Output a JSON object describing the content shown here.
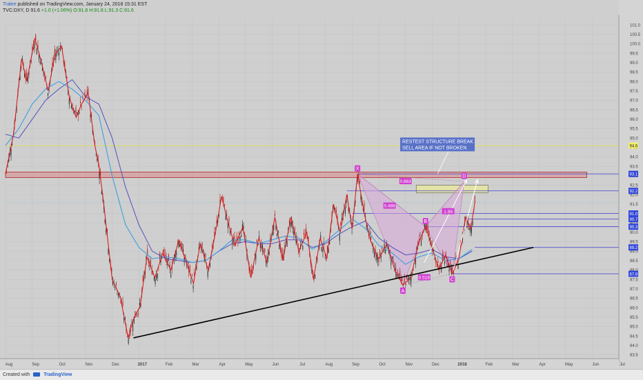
{
  "header": {
    "author": "Tralee",
    "published_text": " published on TradingView.com, January 24, 2018 15:31 EST",
    "symbol_line": "TVC:DXY, D 91.6",
    "change_text": "+1.0 (+1.06%)",
    "ohlc_text": "O:91.8 H:91.8 L:91.3 C:91.6"
  },
  "footer": {
    "created_with": "Created with",
    "brand": "TradingView"
  },
  "colors": {
    "background": "#cfcfcf",
    "candle_up": "#2b2b2b",
    "candle_down": "#b81f1f",
    "zigzag": "#d62020",
    "ma_fast": "#3aa0e0",
    "ma_slow": "#5050c0",
    "trendline": "#000000",
    "level_line": "#3a3ad0",
    "resistance_zone": "#d98a8a",
    "sell_zone": "#e6e6a0",
    "pattern_fill": "#d9a9d9",
    "label_bg": "#3046d8"
  },
  "chart_data": {
    "type": "candlestick",
    "symbol": "TVC:DXY",
    "timeframe": "D",
    "x_ticks": [
      "Aug",
      "Sep",
      "Oct",
      "Nov",
      "Dec",
      "2017",
      "Feb",
      "Mar",
      "Apr",
      "May",
      "Jun",
      "Jul",
      "Aug",
      "Sep",
      "Oct",
      "Nov",
      "Dec",
      "2018",
      "Feb",
      "Mar",
      "Apr",
      "May",
      "Jun",
      "Jul"
    ],
    "y_ticks": [
      101.0,
      100.5,
      100.0,
      99.5,
      99.0,
      98.5,
      98.0,
      97.5,
      97.0,
      96.5,
      96.0,
      95.5,
      95.0,
      94.5,
      94.0,
      93.5,
      93.0,
      92.5,
      92.0,
      91.5,
      91.0,
      90.5,
      90.0,
      89.5,
      89.0,
      88.5,
      88.0,
      87.5,
      87.0,
      86.5,
      86.0,
      85.5,
      85.0,
      84.5,
      84.0,
      83.5
    ],
    "y_range": [
      83.3,
      101.3
    ],
    "price_series": [
      {
        "x": 0,
        "y": 93.1
      },
      {
        "x": 0.3,
        "y": 95.2
      },
      {
        "x": 0.6,
        "y": 99.2
      },
      {
        "x": 0.8,
        "y": 98.0
      },
      {
        "x": 1.1,
        "y": 100.3
      },
      {
        "x": 1.35,
        "y": 99.0
      },
      {
        "x": 1.6,
        "y": 97.5
      },
      {
        "x": 1.85,
        "y": 99.4
      },
      {
        "x": 2.1,
        "y": 99.9
      },
      {
        "x": 2.4,
        "y": 97.1
      },
      {
        "x": 2.65,
        "y": 96.1
      },
      {
        "x": 2.85,
        "y": 96.8
      },
      {
        "x": 3.1,
        "y": 97.4
      },
      {
        "x": 3.35,
        "y": 94.6
      },
      {
        "x": 3.5,
        "y": 93.6
      },
      {
        "x": 3.7,
        "y": 91.3
      },
      {
        "x": 4.0,
        "y": 87.5
      },
      {
        "x": 4.3,
        "y": 86.6
      },
      {
        "x": 4.6,
        "y": 84.4
      },
      {
        "x": 4.8,
        "y": 85.4
      },
      {
        "x": 5.05,
        "y": 86.1
      },
      {
        "x": 5.3,
        "y": 88.7
      },
      {
        "x": 5.6,
        "y": 87.6
      },
      {
        "x": 5.9,
        "y": 88.9
      },
      {
        "x": 6.2,
        "y": 88.0
      },
      {
        "x": 6.5,
        "y": 89.6
      },
      {
        "x": 6.8,
        "y": 88.3
      },
      {
        "x": 7.05,
        "y": 87.3
      },
      {
        "x": 7.3,
        "y": 89.4
      },
      {
        "x": 7.6,
        "y": 88.0
      },
      {
        "x": 7.85,
        "y": 89.8
      },
      {
        "x": 8.1,
        "y": 91.9
      },
      {
        "x": 8.35,
        "y": 90.5
      },
      {
        "x": 8.6,
        "y": 89.3
      },
      {
        "x": 8.9,
        "y": 90.3
      },
      {
        "x": 9.2,
        "y": 87.6
      },
      {
        "x": 9.5,
        "y": 89.7
      },
      {
        "x": 9.8,
        "y": 88.4
      },
      {
        "x": 10.1,
        "y": 90.8
      },
      {
        "x": 10.4,
        "y": 88.5
      },
      {
        "x": 10.7,
        "y": 90.8
      },
      {
        "x": 11.0,
        "y": 89.0
      },
      {
        "x": 11.3,
        "y": 90.0
      },
      {
        "x": 11.55,
        "y": 87.5
      },
      {
        "x": 11.8,
        "y": 89.7
      },
      {
        "x": 12.05,
        "y": 88.6
      },
      {
        "x": 12.3,
        "y": 91.5
      },
      {
        "x": 12.55,
        "y": 90.0
      },
      {
        "x": 12.8,
        "y": 92.0
      },
      {
        "x": 13.0,
        "y": 90.2
      },
      {
        "x": 13.2,
        "y": 93.1
      },
      {
        "x": 13.45,
        "y": 91.0
      },
      {
        "x": 13.7,
        "y": 89.5
      },
      {
        "x": 14.0,
        "y": 88.6
      },
      {
        "x": 14.3,
        "y": 89.4
      },
      {
        "x": 14.6,
        "y": 88.0
      },
      {
        "x": 14.9,
        "y": 87.2
      },
      {
        "x": 15.2,
        "y": 87.6
      },
      {
        "x": 15.5,
        "y": 89.5
      },
      {
        "x": 15.75,
        "y": 90.3
      },
      {
        "x": 16.0,
        "y": 89.2
      },
      {
        "x": 16.25,
        "y": 88.0
      },
      {
        "x": 16.5,
        "y": 88.8
      },
      {
        "x": 16.75,
        "y": 87.8
      },
      {
        "x": 17.0,
        "y": 88.6
      },
      {
        "x": 17.25,
        "y": 90.8
      },
      {
        "x": 17.45,
        "y": 90.2
      },
      {
        "x": 17.6,
        "y": 91.6
      }
    ],
    "ma_fast": [
      {
        "x": 0,
        "y": 94.6
      },
      {
        "x": 0.5,
        "y": 95.5
      },
      {
        "x": 1.0,
        "y": 96.8
      },
      {
        "x": 1.5,
        "y": 97.6
      },
      {
        "x": 2.0,
        "y": 98.0
      },
      {
        "x": 2.5,
        "y": 97.6
      },
      {
        "x": 3.0,
        "y": 97.0
      },
      {
        "x": 3.5,
        "y": 96.2
      },
      {
        "x": 4.0,
        "y": 93.0
      },
      {
        "x": 4.5,
        "y": 90.4
      },
      {
        "x": 5.0,
        "y": 89.2
      },
      {
        "x": 5.5,
        "y": 88.6
      },
      {
        "x": 6.0,
        "y": 88.7
      },
      {
        "x": 6.5,
        "y": 88.6
      },
      {
        "x": 7.0,
        "y": 88.4
      },
      {
        "x": 7.5,
        "y": 88.5
      },
      {
        "x": 8.0,
        "y": 89.0
      },
      {
        "x": 8.5,
        "y": 89.6
      },
      {
        "x": 9.0,
        "y": 89.6
      },
      {
        "x": 9.5,
        "y": 89.4
      },
      {
        "x": 10.0,
        "y": 89.6
      },
      {
        "x": 10.5,
        "y": 89.8
      },
      {
        "x": 11.0,
        "y": 89.7
      },
      {
        "x": 11.5,
        "y": 89.1
      },
      {
        "x": 12.0,
        "y": 89.5
      },
      {
        "x": 12.5,
        "y": 90.1
      },
      {
        "x": 13.0,
        "y": 90.7
      },
      {
        "x": 13.5,
        "y": 90.2
      },
      {
        "x": 14.0,
        "y": 89.3
      },
      {
        "x": 14.5,
        "y": 88.9
      },
      {
        "x": 15.0,
        "y": 88.3
      },
      {
        "x": 15.5,
        "y": 88.7
      },
      {
        "x": 16.0,
        "y": 88.9
      },
      {
        "x": 16.5,
        "y": 88.5
      },
      {
        "x": 17.0,
        "y": 88.6
      },
      {
        "x": 17.5,
        "y": 89.1
      }
    ],
    "ma_slow": [
      {
        "x": 0,
        "y": 95.2
      },
      {
        "x": 0.5,
        "y": 95.0
      },
      {
        "x": 1.0,
        "y": 96.0
      },
      {
        "x": 1.5,
        "y": 97.0
      },
      {
        "x": 2.0,
        "y": 97.6
      },
      {
        "x": 2.5,
        "y": 98.1
      },
      {
        "x": 3.0,
        "y": 97.2
      },
      {
        "x": 3.5,
        "y": 96.8
      },
      {
        "x": 4.0,
        "y": 95.0
      },
      {
        "x": 4.5,
        "y": 92.4
      },
      {
        "x": 5.0,
        "y": 90.4
      },
      {
        "x": 5.5,
        "y": 89.0
      },
      {
        "x": 6.0,
        "y": 88.6
      },
      {
        "x": 6.5,
        "y": 88.5
      },
      {
        "x": 7.0,
        "y": 88.4
      },
      {
        "x": 7.5,
        "y": 88.5
      },
      {
        "x": 8.0,
        "y": 89.0
      },
      {
        "x": 8.5,
        "y": 89.4
      },
      {
        "x": 9.0,
        "y": 89.5
      },
      {
        "x": 9.5,
        "y": 89.4
      },
      {
        "x": 10.0,
        "y": 89.4
      },
      {
        "x": 10.5,
        "y": 89.6
      },
      {
        "x": 11.0,
        "y": 89.6
      },
      {
        "x": 11.5,
        "y": 89.2
      },
      {
        "x": 12.0,
        "y": 89.4
      },
      {
        "x": 12.5,
        "y": 89.9
      },
      {
        "x": 13.0,
        "y": 90.3
      },
      {
        "x": 13.5,
        "y": 90.6
      },
      {
        "x": 14.0,
        "y": 89.7
      },
      {
        "x": 14.5,
        "y": 89.2
      },
      {
        "x": 15.0,
        "y": 88.8
      },
      {
        "x": 15.5,
        "y": 88.9
      },
      {
        "x": 16.0,
        "y": 89.1
      },
      {
        "x": 16.5,
        "y": 88.7
      },
      {
        "x": 17.0,
        "y": 88.6
      },
      {
        "x": 17.5,
        "y": 89.0
      }
    ],
    "trendline": [
      {
        "x": 4.8,
        "y": 84.4
      },
      {
        "x": 19.8,
        "y": 89.2
      }
    ],
    "horizontal_levels": [
      {
        "price": 94.6,
        "label": "94.6",
        "color": "#e0e040",
        "x_start": 0
      },
      {
        "price": 93.1,
        "label": "93.1",
        "color": "#3a3ad0",
        "x_start": 13.2
      },
      {
        "price": 92.2,
        "label": "92.2",
        "color": "#3a3ad0",
        "x_start": 12.8
      },
      {
        "price": 91.0,
        "label": "91.0",
        "color": "#3a3ad0",
        "x_start": 13.0
      },
      {
        "price": 90.7,
        "label": "90.7",
        "color": "#3a3ad0",
        "x_start": 17.3
      },
      {
        "price": 90.3,
        "label": "90.3",
        "color": "#3a3ad0",
        "x_start": 15.75
      },
      {
        "price": 89.2,
        "label": "89.2",
        "color": "#3a3ad0",
        "x_start": 17.6
      },
      {
        "price": 87.8,
        "label": "87.8",
        "color": "#3a3ad0",
        "x_start": 16.75
      }
    ],
    "price_tag": {
      "price": 91.6,
      "label": "DXY"
    },
    "resistance_zone": {
      "x_start": 0,
      "x_end": 21.8,
      "y_top": 93.2,
      "y_bottom": 92.9
    },
    "sell_zone": {
      "x_start": 15.4,
      "x_end": 18.1,
      "y_top": 92.5,
      "y_bottom": 92.1
    },
    "pattern": {
      "points": [
        {
          "name": "X",
          "x": 13.2,
          "y": 93.1
        },
        {
          "name": "A",
          "x": 14.9,
          "y": 87.2
        },
        {
          "name": "B",
          "x": 15.75,
          "y": 90.3
        },
        {
          "name": "C",
          "x": 16.75,
          "y": 87.8
        },
        {
          "name": "D",
          "x": 17.2,
          "y": 92.7
        }
      ],
      "ratios": [
        {
          "text": "0.488",
          "x": 14.4,
          "y": 91.4
        },
        {
          "text": "0.863",
          "x": 15.0,
          "y": 92.7
        },
        {
          "text": "1.99",
          "x": 16.6,
          "y": 91.1
        },
        {
          "text": "0.516",
          "x": 15.7,
          "y": 87.6
        }
      ]
    },
    "arrows": [
      {
        "from": {
          "x": 15.7,
          "y": 88.4
        },
        "to": {
          "x": 17.3,
          "y": 92.8
        }
      },
      {
        "from": {
          "x": 16.8,
          "y": 88.0
        },
        "to": {
          "x": 17.7,
          "y": 92.8
        }
      }
    ],
    "annotation": {
      "lines": [
        "RESTEST STRUCTURE BREAK",
        "SELL AREA IF NOT BROKEN"
      ],
      "x": 14.8,
      "y": 94.7,
      "pointer_to": {
        "x": 16.2,
        "y": 93.1
      }
    }
  }
}
